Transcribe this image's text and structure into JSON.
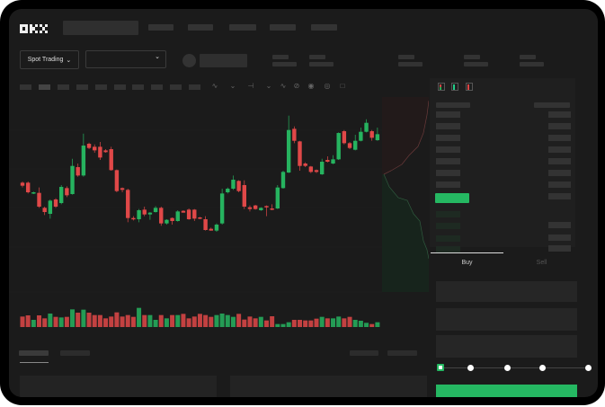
{
  "header": {
    "logo": "OKX"
  },
  "toolbar": {
    "market_selector": "Spot Trading",
    "chevron_icon": "chevron-down-icon",
    "tool_icons": [
      "indicator-icon",
      "line-icon",
      "draw-icon",
      "ruler-icon",
      "camera-icon",
      "settings-icon",
      "fullscreen-icon"
    ]
  },
  "orderbook": {
    "layout_icons": [
      "book-both-icon",
      "book-bids-icon",
      "book-asks-icon"
    ]
  },
  "trade": {
    "tabs": [
      "Buy",
      "Sell"
    ],
    "active_tab": "Buy",
    "slider_percent": 0,
    "slider_stops": [
      0,
      25,
      50,
      75,
      100
    ]
  },
  "colors": {
    "up": "#26b35f",
    "down": "#e04848",
    "background": "#1b1b1b",
    "accent": "#25b862"
  },
  "chart_data": {
    "type": "candlestick",
    "candles": [
      [
        50,
        51,
        46,
        47.5
      ],
      [
        50,
        51,
        41,
        42
      ],
      [
        41,
        42.5,
        40.5,
        42
      ],
      [
        41.5,
        46,
        29,
        30
      ],
      [
        29,
        30,
        23,
        25.5
      ],
      [
        24,
        36,
        20,
        35
      ],
      [
        36,
        37,
        29,
        30
      ],
      [
        33,
        48,
        32,
        46.5
      ],
      [
        45.5,
        47,
        38,
        39.5
      ],
      [
        40.5,
        70,
        40,
        64
      ],
      [
        63,
        66,
        55,
        56
      ],
      [
        56,
        91,
        55,
        81
      ],
      [
        82.5,
        83.5,
        78,
        79
      ],
      [
        80,
        82,
        75,
        77
      ],
      [
        80,
        84,
        69,
        71
      ],
      [
        77,
        78,
        75,
        75.5
      ],
      [
        78,
        80,
        60,
        60.5
      ],
      [
        60.5,
        61,
        42,
        43
      ],
      [
        45.5,
        46,
        42,
        44
      ],
      [
        44,
        45,
        17,
        20.5
      ],
      [
        20.5,
        22,
        18.5,
        19.5
      ],
      [
        19.5,
        28,
        17,
        27
      ],
      [
        27.5,
        30,
        22,
        23.5
      ],
      [
        23.5,
        25.5,
        19,
        25
      ],
      [
        25.5,
        30.5,
        25,
        29
      ],
      [
        29,
        30,
        14,
        16
      ],
      [
        16,
        19.5,
        15,
        19
      ],
      [
        20.5,
        21,
        15,
        18
      ],
      [
        18,
        27,
        17.5,
        26
      ],
      [
        26.5,
        27,
        25,
        25
      ],
      [
        27.5,
        28.5,
        19,
        19.5
      ],
      [
        27.5,
        28,
        18,
        20
      ],
      [
        21,
        21.5,
        19.5,
        20
      ],
      [
        19.5,
        22,
        10,
        10.5
      ],
      [
        11.5,
        12.5,
        10,
        10
      ],
      [
        10,
        16,
        9,
        15
      ],
      [
        16,
        45,
        15,
        41
      ],
      [
        42,
        46,
        41,
        45
      ],
      [
        45,
        56,
        44,
        52.5
      ],
      [
        51.5,
        52,
        42,
        43
      ],
      [
        48,
        52,
        28,
        30
      ],
      [
        29.5,
        31,
        26,
        28
      ],
      [
        31,
        31.5,
        27.5,
        28
      ],
      [
        27,
        29.5,
        26.5,
        29
      ],
      [
        30.5,
        31,
        22,
        30
      ],
      [
        28.5,
        32,
        27,
        27.5
      ],
      [
        28.5,
        48,
        28,
        46
      ],
      [
        45.5,
        60,
        45,
        59
      ],
      [
        58.5,
        106,
        58,
        94
      ],
      [
        95,
        97,
        83,
        85
      ],
      [
        84.5,
        85,
        60,
        64
      ],
      [
        66,
        67,
        63,
        64
      ],
      [
        63.5,
        64,
        58,
        59
      ],
      [
        60.5,
        61,
        58,
        59
      ],
      [
        57,
        70,
        56.5,
        67.5
      ],
      [
        69,
        72,
        67,
        67.5
      ],
      [
        66,
        73,
        65.5,
        69.5
      ],
      [
        69.5,
        92,
        69,
        91.5
      ],
      [
        93,
        94,
        82,
        83
      ],
      [
        83,
        84,
        78,
        79
      ],
      [
        77.5,
        90,
        77,
        85
      ],
      [
        85,
        96,
        84.5,
        92.5
      ],
      [
        92.5,
        103,
        92,
        100
      ],
      [
        93,
        94,
        85,
        87.5
      ],
      [
        85.5,
        96,
        85,
        90.5
      ]
    ],
    "volume": [
      35,
      39,
      24,
      39,
      29,
      45,
      34,
      32,
      34,
      59,
      48,
      58,
      48,
      40,
      40,
      29,
      35,
      49,
      35,
      40,
      34,
      64,
      40,
      40,
      24,
      40,
      29,
      40,
      40,
      44,
      29,
      35,
      44,
      40,
      34,
      40,
      45,
      40,
      34,
      44,
      25,
      35,
      29,
      34,
      22,
      36,
      10,
      10,
      16,
      24,
      24,
      22,
      22,
      28,
      34,
      29,
      29,
      35,
      29,
      34,
      24,
      21,
      14,
      10,
      16
    ]
  }
}
